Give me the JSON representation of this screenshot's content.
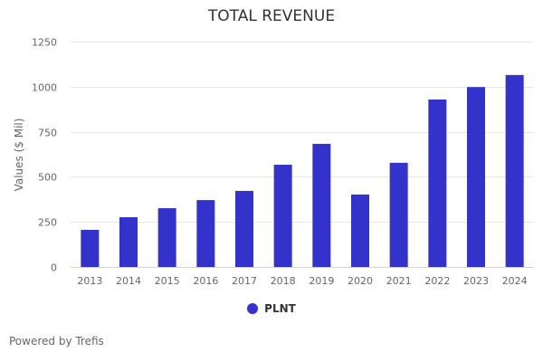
{
  "chart_data": {
    "type": "bar",
    "title": "TOTAL REVENUE",
    "xlabel": "",
    "ylabel": "Values ($ Mil)",
    "ylim": [
      0,
      1250
    ],
    "yticks": [
      0,
      250,
      500,
      750,
      1000,
      1250
    ],
    "grid": true,
    "categories": [
      "2013",
      "2014",
      "2015",
      "2016",
      "2017",
      "2018",
      "2019",
      "2020",
      "2021",
      "2022",
      "2023",
      "2024"
    ],
    "series": [
      {
        "name": "PLNT",
        "color": "#3333cc",
        "values": [
          206,
          276,
          326,
          371,
          422,
          567,
          683,
          402,
          578,
          929,
          998,
          1065
        ]
      }
    ],
    "legend": {
      "position": "bottom-center",
      "entries": [
        "PLNT"
      ]
    }
  },
  "footer": {
    "credit": "Powered by Trefis"
  }
}
